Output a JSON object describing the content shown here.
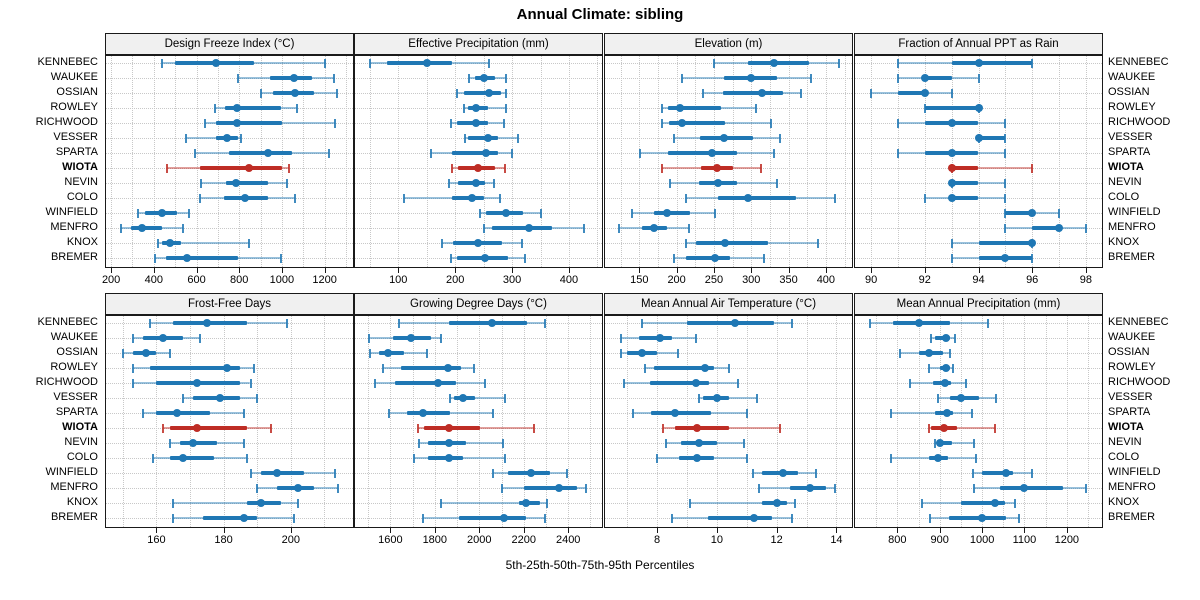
{
  "title": "Annual Climate: sibling",
  "caption": "5th-25th-50th-75th-95th Percentiles",
  "colors": {
    "series": "#1f77b4",
    "highlight": "#be2d25",
    "strip_background": "#f0f0f0",
    "gridline": "#c8c8c8",
    "panel_border": "#1a1a1a"
  },
  "chart_data": {
    "type": "dotplot-percentiles",
    "title": "Annual Climate: sibling",
    "xlabel": "5th-25th-50th-75th-95th Percentiles",
    "percentile_labels": [
      "5th",
      "25th",
      "50th",
      "75th",
      "95th"
    ],
    "grid": "dotted, minor steps between labeled ticks, horizontal dotted line per site row",
    "highlight_site": "WIOTA",
    "sites": [
      "KENNEBEC",
      "WAUKEE",
      "OSSIAN",
      "ROWLEY",
      "RICHWOOD",
      "VESSER",
      "SPARTA",
      "WIOTA",
      "NEVIN",
      "COLO",
      "WINFIELD",
      "MENFRO",
      "KNOX",
      "BREMER"
    ],
    "panels": [
      {
        "title": "Design Freeze Index (°C)",
        "row": 0,
        "col": 0,
        "ticks": [
          200,
          400,
          600,
          800,
          1000,
          1200
        ],
        "xlim": [
          176,
          1333
        ],
        "grid_step": 100,
        "values": [
          [
            440,
            500,
            690,
            870,
            1200
          ],
          [
            795,
            945,
            1055,
            1140,
            1245
          ],
          [
            900,
            960,
            1060,
            1150,
            1260
          ],
          [
            685,
            735,
            790,
            995,
            1070
          ],
          [
            640,
            690,
            790,
            1000,
            1250
          ],
          [
            550,
            690,
            745,
            795,
            810
          ],
          [
            595,
            750,
            935,
            1045,
            1220
          ],
          [
            460,
            615,
            845,
            1000,
            1035
          ],
          [
            620,
            740,
            785,
            935,
            1025
          ],
          [
            615,
            730,
            825,
            935,
            1060
          ],
          [
            325,
            360,
            440,
            510,
            565
          ],
          [
            245,
            295,
            345,
            440,
            535
          ],
          [
            420,
            440,
            475,
            525,
            845
          ],
          [
            405,
            455,
            555,
            795,
            995
          ]
        ]
      },
      {
        "title": "Effective Precipitation (mm)",
        "row": 0,
        "col": 1,
        "ticks": [
          100,
          200,
          300,
          400
        ],
        "xlim": [
          24,
          458
        ],
        "grid_step": 50,
        "values": [
          [
            50,
            80,
            150,
            195,
            260
          ],
          [
            225,
            235,
            250,
            270,
            290
          ],
          [
            203,
            215,
            260,
            280,
            290
          ],
          [
            215,
            222,
            236,
            258,
            290
          ],
          [
            193,
            203,
            236,
            257,
            285
          ],
          [
            217,
            223,
            257,
            275,
            310
          ],
          [
            157,
            194,
            255,
            275,
            300
          ],
          [
            195,
            205,
            240,
            270,
            288
          ],
          [
            190,
            205,
            236,
            252,
            268
          ],
          [
            110,
            194,
            230,
            250,
            278
          ],
          [
            243,
            255,
            290,
            320,
            350
          ],
          [
            250,
            265,
            330,
            370,
            427
          ],
          [
            177,
            196,
            240,
            282,
            318
          ],
          [
            193,
            203,
            252,
            292,
            322
          ]
        ]
      },
      {
        "title": "Elevation (m)",
        "row": 0,
        "col": 2,
        "ticks": [
          150,
          200,
          250,
          300,
          350,
          400
        ],
        "xlim": [
          104,
          435
        ],
        "grid_step": 25,
        "values": [
          [
            250,
            295,
            330,
            378,
            418
          ],
          [
            207,
            263,
            300,
            335,
            380
          ],
          [
            235,
            262,
            315,
            343,
            367
          ],
          [
            180,
            188,
            205,
            260,
            307
          ],
          [
            180,
            190,
            207,
            265,
            327
          ],
          [
            196,
            231,
            263,
            302,
            338
          ],
          [
            151,
            189,
            247,
            281,
            330
          ],
          [
            181,
            232,
            254,
            275,
            313
          ],
          [
            191,
            230,
            256,
            281,
            334
          ],
          [
            213,
            256,
            296,
            360,
            412
          ],
          [
            140,
            170,
            187,
            218,
            252
          ],
          [
            123,
            154,
            169,
            187,
            217
          ],
          [
            212,
            226,
            265,
            323,
            390
          ],
          [
            196,
            213,
            251,
            271,
            317
          ]
        ]
      },
      {
        "title": "Fraction of Annual PPT as Rain",
        "row": 0,
        "col": 3,
        "ticks": [
          90,
          92,
          94,
          96,
          98
        ],
        "xlim": [
          89.4,
          98.6
        ],
        "grid_step": 1,
        "values": [
          [
            91,
            93,
            94,
            96,
            96
          ],
          [
            91,
            92,
            92,
            93,
            94
          ],
          [
            90,
            91,
            92,
            92,
            93
          ],
          [
            92,
            92,
            94,
            94,
            94
          ],
          [
            91,
            92,
            93,
            94,
            95
          ],
          [
            94,
            94,
            94,
            95,
            95
          ],
          [
            91,
            92,
            93,
            94,
            95
          ],
          [
            93,
            93,
            93,
            94,
            96
          ],
          [
            93,
            93,
            93,
            94,
            95
          ],
          [
            92,
            93,
            93,
            94,
            95
          ],
          [
            95,
            95,
            96,
            96,
            97
          ],
          [
            95,
            96,
            97,
            97,
            98
          ],
          [
            93,
            94,
            96,
            96,
            96
          ],
          [
            93,
            94,
            95,
            96,
            96
          ]
        ]
      },
      {
        "title": "Frost-Free Days",
        "row": 1,
        "col": 0,
        "ticks": [
          160,
          180,
          200
        ],
        "xlim": [
          145,
          218.5
        ],
        "grid_step": 10,
        "values": [
          [
            158,
            165,
            175,
            187,
            199
          ],
          [
            153,
            156,
            162,
            168,
            173
          ],
          [
            150,
            153,
            157,
            160,
            164
          ],
          [
            153,
            158,
            181,
            185,
            189
          ],
          [
            153,
            160,
            172,
            185,
            188
          ],
          [
            168,
            171,
            179,
            185,
            190
          ],
          [
            156,
            160,
            166,
            176,
            186
          ],
          [
            162,
            164,
            172,
            187,
            194
          ],
          [
            164,
            167,
            171,
            178,
            186
          ],
          [
            159,
            164,
            168,
            177,
            187
          ],
          [
            188,
            191,
            196,
            204,
            213
          ],
          [
            190,
            196,
            202,
            207,
            214
          ],
          [
            165,
            187,
            191,
            197,
            202
          ],
          [
            165,
            174,
            186,
            190,
            201
          ]
        ]
      },
      {
        "title": "Growing Degree Days (°C)",
        "row": 1,
        "col": 1,
        "ticks": [
          1600,
          1800,
          2000,
          2200,
          2400
        ],
        "xlim": [
          1441,
          2552
        ],
        "grid_step": 100,
        "values": [
          [
            1640,
            1865,
            2055,
            2215,
            2295
          ],
          [
            1505,
            1610,
            1695,
            1785,
            1830
          ],
          [
            1510,
            1550,
            1590,
            1660,
            1765
          ],
          [
            1565,
            1650,
            1860,
            1920,
            1975
          ],
          [
            1533,
            1622,
            1815,
            1896,
            2025
          ],
          [
            1870,
            1885,
            1925,
            1980,
            2115
          ],
          [
            1593,
            1677,
            1748,
            1867,
            2062
          ],
          [
            1725,
            1750,
            1865,
            2005,
            2245
          ],
          [
            1730,
            1770,
            1862,
            1940,
            2107
          ],
          [
            1707,
            1770,
            1862,
            1929,
            2117
          ],
          [
            2060,
            2130,
            2232,
            2320,
            2395
          ],
          [
            2100,
            2200,
            2360,
            2440,
            2480
          ],
          [
            1830,
            2180,
            2210,
            2275,
            2305
          ],
          [
            1748,
            1907,
            2110,
            2210,
            2295
          ]
        ]
      },
      {
        "title": "Mean Annual Air Temperature (°C)",
        "row": 1,
        "col": 2,
        "ticks": [
          8,
          10,
          12,
          14
        ],
        "xlim": [
          6.26,
          14.52
        ],
        "grid_step": 1,
        "values": [
          [
            7.5,
            9.0,
            10.6,
            11.9,
            12.5
          ],
          [
            6.8,
            7.4,
            8.1,
            8.5,
            9.3
          ],
          [
            6.8,
            7.0,
            7.5,
            8.0,
            8.7
          ],
          [
            7.6,
            7.9,
            9.6,
            9.9,
            10.4
          ],
          [
            6.9,
            7.75,
            9.3,
            9.75,
            10.7
          ],
          [
            9.4,
            9.55,
            10.0,
            10.4,
            11.35
          ],
          [
            7.2,
            7.8,
            8.6,
            9.8,
            11.0
          ],
          [
            8.2,
            8.6,
            9.35,
            10.4,
            12.1
          ],
          [
            8.3,
            8.8,
            9.4,
            10.0,
            10.9
          ],
          [
            8.0,
            8.75,
            9.35,
            9.9,
            11.0
          ],
          [
            11.2,
            11.5,
            12.2,
            12.7,
            13.3
          ],
          [
            11.4,
            12.45,
            13.1,
            13.65,
            13.95
          ],
          [
            9.1,
            11.5,
            12.0,
            12.35,
            12.6
          ],
          [
            8.5,
            9.7,
            11.25,
            11.85,
            12.5
          ]
        ]
      },
      {
        "title": "Mean Annual Precipitation (mm)",
        "row": 1,
        "col": 3,
        "ticks": [
          800,
          900,
          1000,
          1100,
          1200
        ],
        "xlim": [
          700,
          1283
        ],
        "grid_step": 50,
        "values": [
          [
            735,
            790,
            850,
            925,
            1015
          ],
          [
            880,
            890,
            915,
            925,
            935
          ],
          [
            806,
            850,
            875,
            907,
            925
          ],
          [
            875,
            900,
            915,
            925,
            932
          ],
          [
            830,
            883,
            913,
            926,
            963
          ],
          [
            897,
            925,
            950,
            993,
            1033
          ],
          [
            785,
            888,
            918,
            932,
            977
          ],
          [
            874,
            880,
            911,
            940,
            1031
          ],
          [
            890,
            895,
            901,
            928,
            980
          ],
          [
            785,
            874,
            897,
            920,
            985
          ],
          [
            978,
            1000,
            1057,
            1074,
            1117
          ],
          [
            980,
            1043,
            1098,
            1190,
            1245
          ],
          [
            858,
            950,
            1031,
            1053,
            1077
          ],
          [
            876,
            922,
            999,
            1057,
            1088
          ]
        ]
      }
    ]
  }
}
